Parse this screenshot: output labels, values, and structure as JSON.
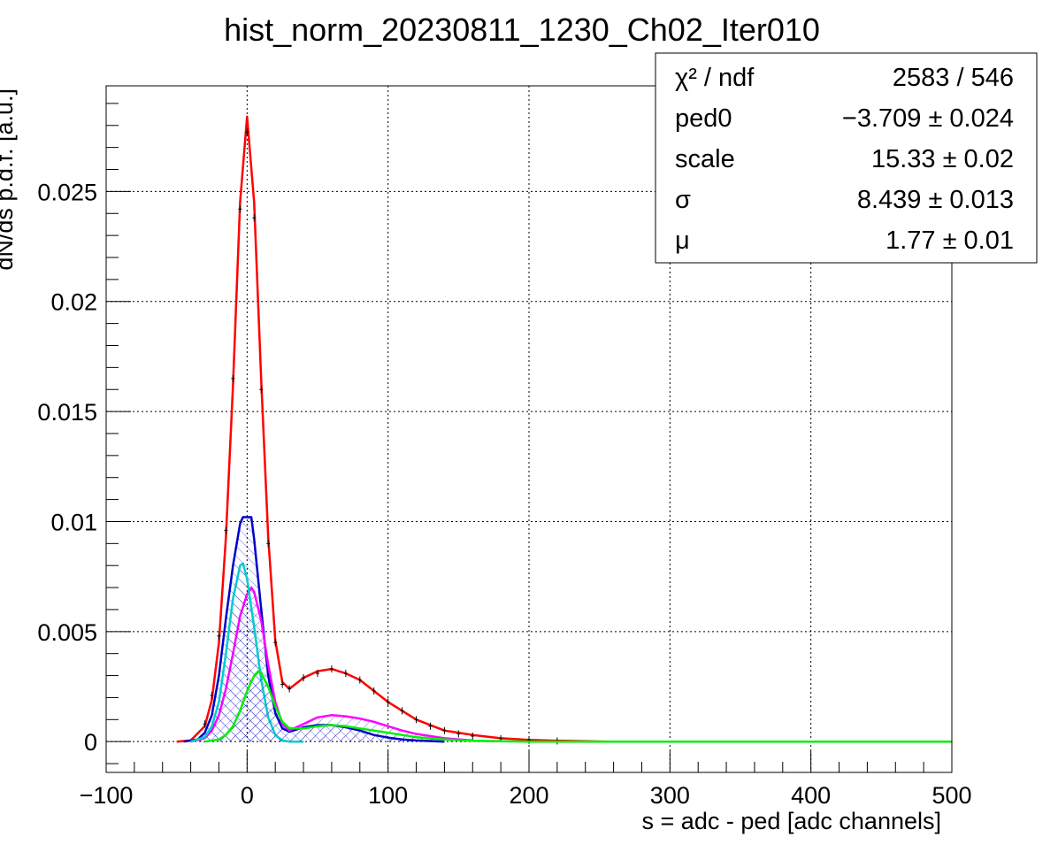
{
  "chart_data": {
    "type": "line",
    "title": "hist_norm_20230811_1230_Ch02_Iter010",
    "xlabel": "s = adc - ped [adc channels]",
    "ylabel": "dN/ds p.d.f. [a.u.]",
    "xlim": [
      -100,
      500
    ],
    "ylim": [
      -0.0014,
      0.0298
    ],
    "x_ticks": [
      -100,
      0,
      100,
      200,
      300,
      400,
      500
    ],
    "x_tick_labels": [
      "−100",
      "0",
      "100",
      "200",
      "300",
      "400",
      "500"
    ],
    "y_ticks": [
      0,
      0.005,
      0.01,
      0.015,
      0.02,
      0.025
    ],
    "y_tick_labels": [
      "0",
      "0.005",
      "0.01",
      "0.015",
      "0.02",
      "0.025"
    ],
    "grid": true,
    "stats_box": {
      "position": "top-right",
      "rows": [
        {
          "label": "χ² / ndf",
          "value": "2583 / 546"
        },
        {
          "label": "ped0",
          "value": "−3.709 ± 0.024"
        },
        {
          "label": "scale",
          "value": "15.33 ± 0.02"
        },
        {
          "label": "σ",
          "value": "8.439 ± 0.013"
        },
        {
          "label": "μ",
          "value": "1.77 ± 0.01"
        }
      ]
    },
    "series": [
      {
        "color": "#ff0000",
        "kind": "fit",
        "x": [
          -50,
          -40,
          -30,
          -25,
          -20,
          -15,
          -10,
          -5,
          0,
          5,
          10,
          15,
          20,
          25,
          30,
          40,
          50,
          60,
          70,
          80,
          100,
          120,
          140,
          160,
          180,
          200,
          220,
          240,
          256
        ],
        "y": [
          0.0,
          5e-05,
          0.0007,
          0.0019,
          0.0045,
          0.0093,
          0.0162,
          0.0245,
          0.0284,
          0.0245,
          0.0164,
          0.0093,
          0.0046,
          0.0027,
          0.0024,
          0.0029,
          0.0032,
          0.0033,
          0.0031,
          0.0028,
          0.0018,
          0.001,
          0.0005,
          0.0003,
          0.00015,
          8e-05,
          4e-05,
          2e-05,
          0.0
        ]
      },
      {
        "color": "#000000",
        "kind": "data",
        "x": [
          -30,
          -25,
          -20,
          -15,
          -10,
          -5,
          0,
          5,
          10,
          15,
          20,
          25,
          30,
          40,
          50,
          60,
          70,
          80,
          90,
          100,
          110,
          120,
          130,
          140,
          150,
          160,
          180,
          200,
          220
        ],
        "y": [
          0.0008,
          0.0021,
          0.0048,
          0.0096,
          0.0165,
          0.0242,
          0.0277,
          0.0238,
          0.016,
          0.009,
          0.0045,
          0.0026,
          0.0024,
          0.0029,
          0.0031,
          0.0033,
          0.0031,
          0.0028,
          0.0023,
          0.0018,
          0.0014,
          0.001,
          0.0007,
          0.0005,
          0.00035,
          0.00025,
          0.00013,
          6e-05,
          3e-05
        ]
      },
      {
        "color": "#0000cc",
        "kind": "component",
        "hatched": true,
        "x": [
          -45,
          -35,
          -30,
          -25,
          -20,
          -15,
          -10,
          -5,
          -3,
          3,
          5,
          10,
          15,
          20,
          25,
          30,
          40,
          50,
          60,
          70,
          80,
          90,
          100,
          110,
          120,
          140
        ],
        "y": [
          0.0,
          0.0001,
          0.0004,
          0.0012,
          0.003,
          0.0056,
          0.008,
          0.0099,
          0.0102,
          0.0102,
          0.0092,
          0.006,
          0.003,
          0.0013,
          0.0006,
          0.00045,
          0.00065,
          0.00075,
          0.00075,
          0.00065,
          0.0005,
          0.0003,
          0.00018,
          0.0001,
          5e-05,
          0.0
        ]
      },
      {
        "color": "#ff00ff",
        "kind": "component",
        "hatched": true,
        "x": [
          -40,
          -30,
          -25,
          -20,
          -15,
          -10,
          -5,
          0,
          3,
          5,
          10,
          15,
          20,
          25,
          30,
          40,
          50,
          60,
          70,
          80,
          90,
          100,
          110,
          120,
          140,
          160
        ],
        "y": [
          0.0,
          0.00015,
          0.0005,
          0.0012,
          0.0024,
          0.004,
          0.0057,
          0.0067,
          0.007,
          0.0068,
          0.0055,
          0.0035,
          0.0018,
          0.0008,
          0.0005,
          0.0008,
          0.0011,
          0.0012,
          0.00115,
          0.00105,
          0.0009,
          0.0007,
          0.0005,
          0.00035,
          0.00015,
          5e-05
        ]
      },
      {
        "color": "#00cccc",
        "kind": "component",
        "hatched": true,
        "x": [
          -40,
          -30,
          -25,
          -20,
          -15,
          -10,
          -5,
          -3,
          0,
          5,
          10,
          15,
          20,
          25,
          30,
          40
        ],
        "y": [
          0.0,
          0.0002,
          0.0007,
          0.0018,
          0.004,
          0.0065,
          0.008,
          0.0081,
          0.0074,
          0.0052,
          0.0028,
          0.0011,
          0.0003,
          5e-05,
          0.0,
          0.0
        ]
      },
      {
        "color": "#00ee00",
        "kind": "component",
        "hatched": true,
        "x": [
          -30,
          -20,
          -15,
          -10,
          -5,
          0,
          5,
          8,
          10,
          15,
          20,
          25,
          30,
          40,
          50,
          60,
          70,
          80,
          90,
          100,
          110,
          120,
          140,
          160,
          180,
          200,
          500
        ],
        "y": [
          0.0,
          0.0001,
          0.0003,
          0.0007,
          0.0014,
          0.0023,
          0.003,
          0.0032,
          0.0031,
          0.0025,
          0.0016,
          0.0009,
          0.0006,
          0.0006,
          0.0007,
          0.00075,
          0.0007,
          0.0006,
          0.0005,
          0.0004,
          0.0003,
          0.0002,
          0.0001,
          4e-05,
          2e-05,
          0.0,
          0.0
        ]
      }
    ]
  }
}
